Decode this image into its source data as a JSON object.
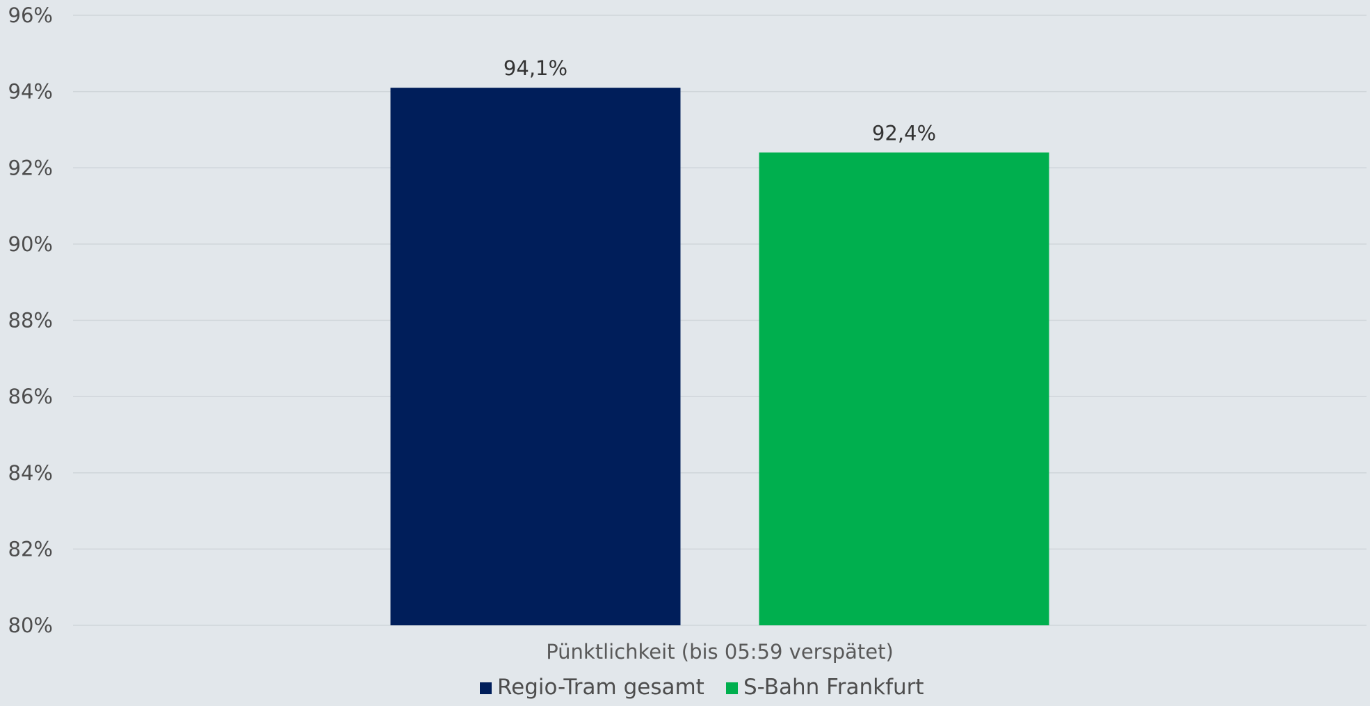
{
  "chart_data": {
    "type": "bar",
    "title": "",
    "xlabel": "",
    "ylabel": "",
    "categories": [
      "Pünktlichkeit (bis 05:59 verspätet)"
    ],
    "series": [
      {
        "name": "Regio-Tram gesamt",
        "values": [
          94.1
        ],
        "value_labels": [
          "94,1%"
        ],
        "color": "#001e5a"
      },
      {
        "name": "S-Bahn Frankfurt",
        "values": [
          92.4
        ],
        "value_labels": [
          "92,4%"
        ],
        "color": "#00af4e"
      }
    ],
    "ylim": [
      80,
      96
    ],
    "yticks": [
      80,
      82,
      84,
      86,
      88,
      90,
      92,
      94,
      96
    ],
    "ytick_labels": [
      "80%",
      "82%",
      "84%",
      "86%",
      "88%",
      "90%",
      "92%",
      "94%",
      "96%"
    ],
    "grid": true,
    "legend": "bottom-center",
    "background": "#e2e7eb"
  }
}
